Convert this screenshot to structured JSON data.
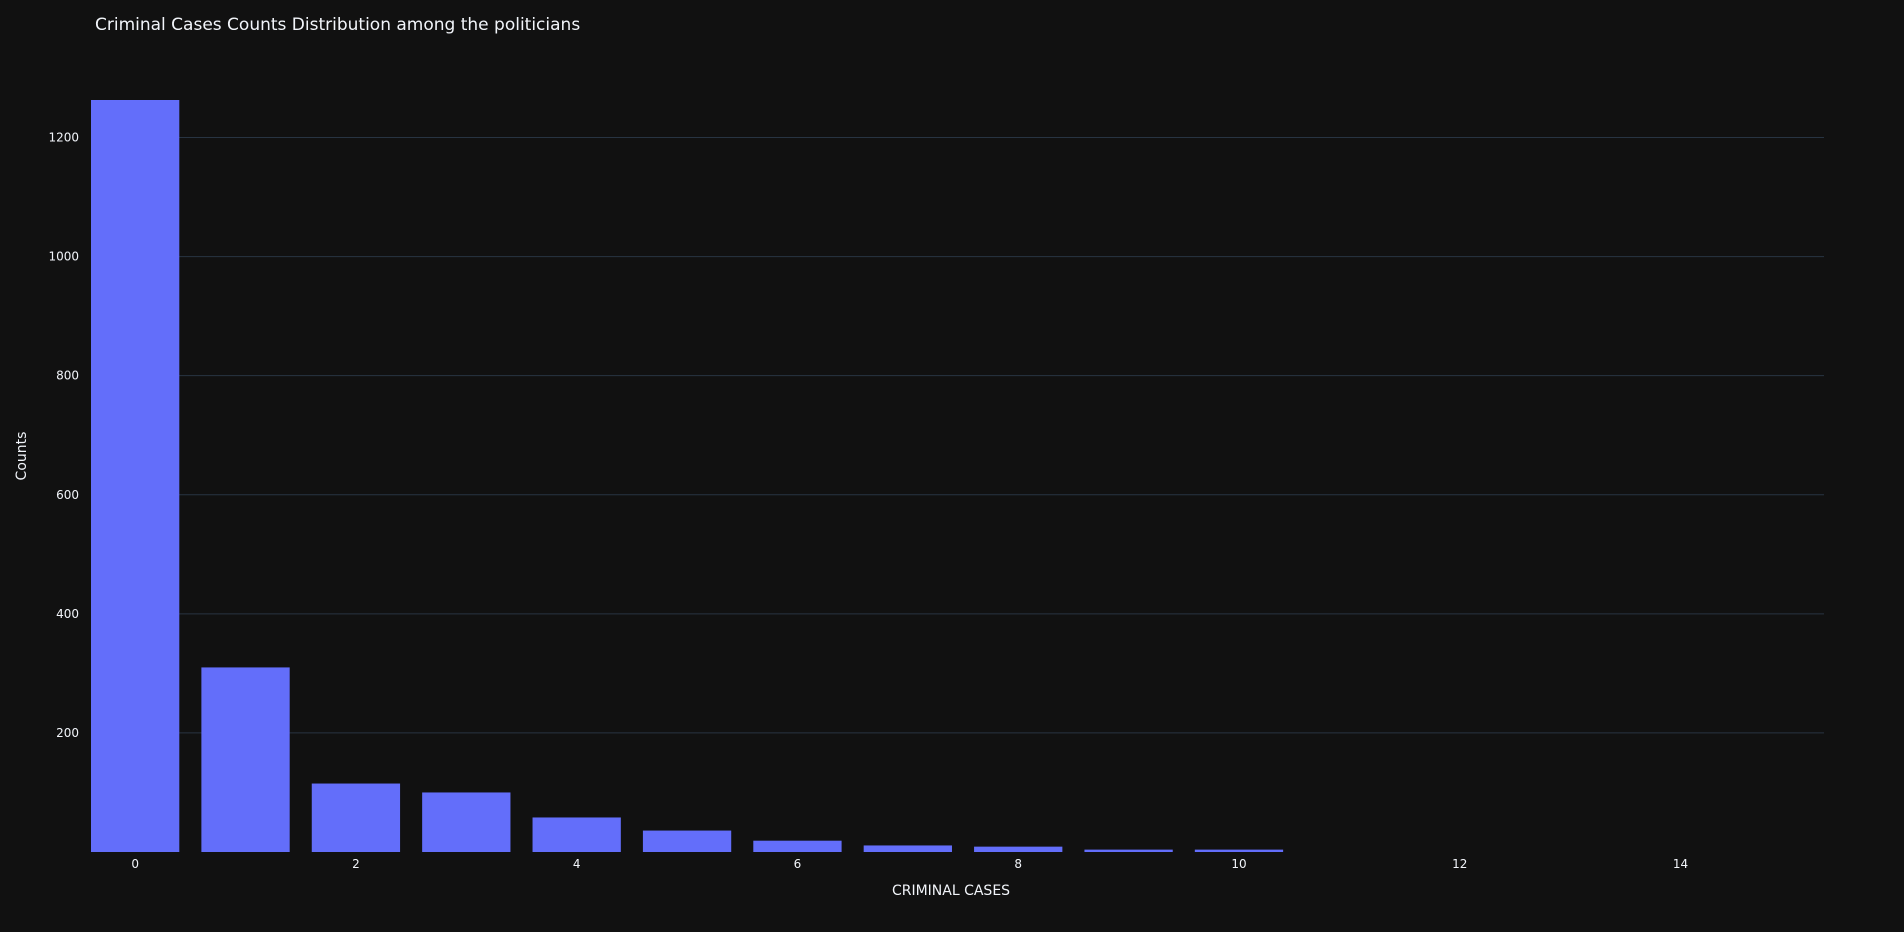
{
  "chart_data": {
    "type": "bar",
    "title": "Criminal Cases Counts Distribution among the politicians",
    "xlabel": "CRIMINAL CASES",
    "ylabel": "Counts",
    "x": [
      0,
      1,
      2,
      3,
      4,
      5,
      6,
      7,
      8,
      9,
      10
    ],
    "values": [
      1263,
      310,
      115,
      100,
      58,
      36,
      19,
      11,
      9,
      4,
      4
    ],
    "x_ticks": [
      0,
      2,
      4,
      6,
      8,
      10,
      12,
      14
    ],
    "y_ticks": [
      200,
      400,
      600,
      800,
      1000,
      1200
    ],
    "xlim": [
      -0.4,
      15.3
    ],
    "ylim": [
      0,
      1263
    ],
    "grid": true,
    "bar_color": "#636efa",
    "background": "#111111",
    "grid_color": "#283442",
    "text_color": "#f2f5fa"
  }
}
